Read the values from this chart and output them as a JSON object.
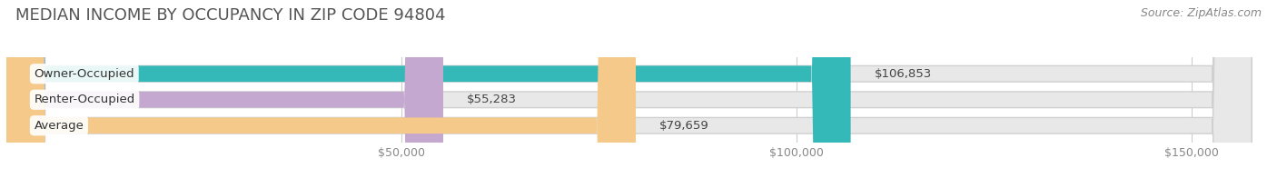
{
  "title": "MEDIAN INCOME BY OCCUPANCY IN ZIP CODE 94804",
  "source": "Source: ZipAtlas.com",
  "categories": [
    "Owner-Occupied",
    "Renter-Occupied",
    "Average"
  ],
  "values": [
    106853,
    55283,
    79659
  ],
  "bar_colors": [
    "#35b8b8",
    "#c4a8d0",
    "#f5c98a"
  ],
  "bg_color": "#ffffff",
  "bar_bg_color": "#e8e8e8",
  "bar_border_color": "#d0d0d0",
  "xlim_max": 160000,
  "xticks": [
    50000,
    100000,
    150000
  ],
  "xticklabels": [
    "$50,000",
    "$100,000",
    "$150,000"
  ],
  "value_labels": [
    "$106,853",
    "$55,283",
    "$79,659"
  ],
  "title_fontsize": 13,
  "source_fontsize": 9,
  "tick_fontsize": 9,
  "bar_height": 0.62,
  "label_fontsize": 9.5,
  "value_fontsize": 9.5
}
